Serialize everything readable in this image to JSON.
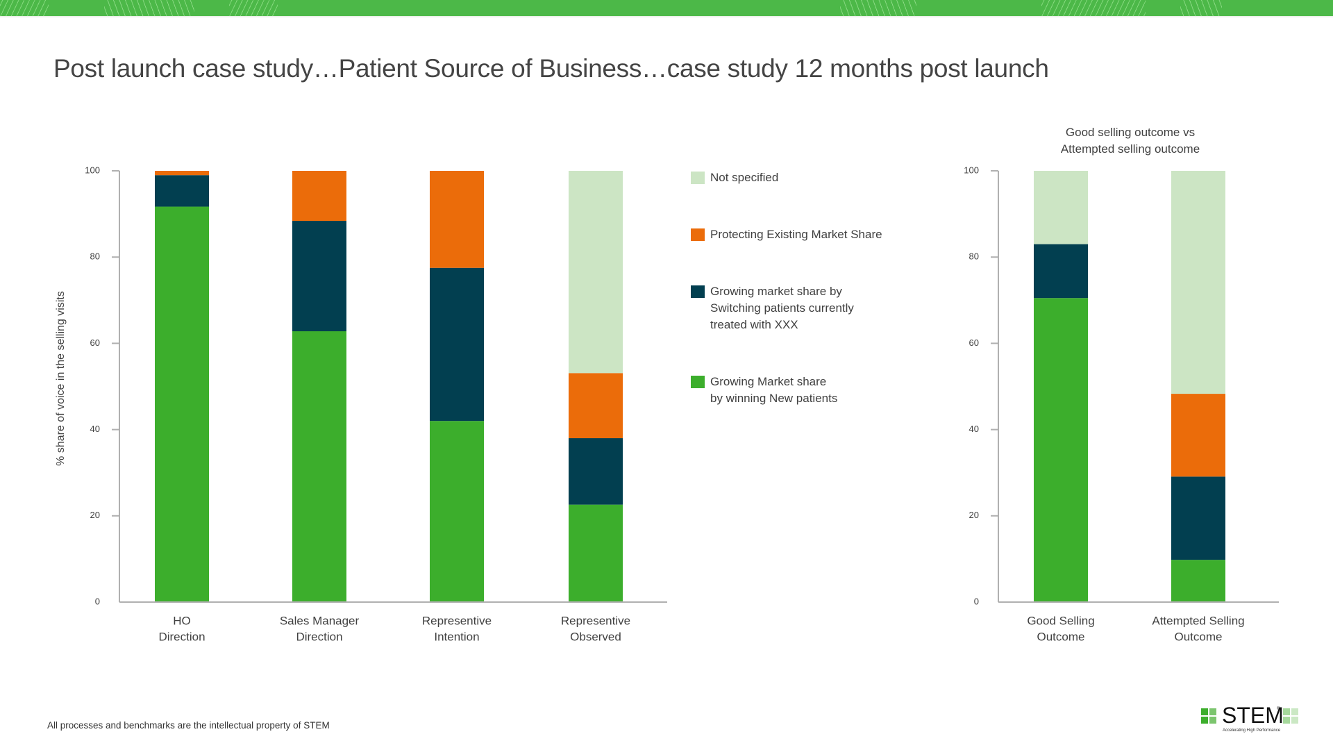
{
  "page": {
    "title": "Post launch case study…Patient Source of Business…case study 12 months post launch",
    "footer_note": "All processes and benchmarks are the intellectual property of STEM",
    "logo": {
      "word": "STEM",
      "tm": "®",
      "tagline": "Accelerating High Performance"
    },
    "colors": {
      "banner": "#4cb848",
      "not_specified": "#cce5c4",
      "protecting": "#eb6c0a",
      "switching": "#023f50",
      "new_patients": "#3cae2c",
      "axis": "#b0b0b0"
    }
  },
  "legend": {
    "items": [
      {
        "label": "Not specified",
        "color": "#cce5c4"
      },
      {
        "label": "Protecting Existing Market Share",
        "color": "#eb6c0a"
      },
      {
        "label": "Growing market share by\nSwitching patients currently\ntreated with XXX",
        "color": "#023f50"
      },
      {
        "label": "Growing Market share\nby winning  New patients",
        "color": "#3cae2c"
      }
    ]
  },
  "chart_data": [
    {
      "type": "bar",
      "stacked": true,
      "title": "",
      "xlabel": "",
      "ylabel": "% share of voice in the selling visits",
      "ylim": [
        0,
        100
      ],
      "yticks": [
        0,
        20,
        40,
        60,
        80,
        100
      ],
      "grid": false,
      "legend_position": "right",
      "categories": [
        [
          "HO",
          "Direction"
        ],
        [
          "Sales Manager",
          "Direction"
        ],
        [
          "Representive",
          "Intention"
        ],
        [
          "Representive",
          "Observed"
        ]
      ],
      "series": [
        {
          "name": "Growing Market share by winning New patients",
          "color": "#3cae2c",
          "values": [
            91.7,
            62.8,
            42.0,
            22.6
          ]
        },
        {
          "name": "Growing market share by Switching patients currently treated with XXX",
          "color": "#023f50",
          "values": [
            7.3,
            25.6,
            35.5,
            15.4
          ]
        },
        {
          "name": "Protecting Existing Market Share",
          "color": "#eb6c0a",
          "values": [
            1.0,
            11.6,
            22.5,
            15.1
          ]
        },
        {
          "name": "Not specified",
          "color": "#cce5c4",
          "values": [
            0,
            0,
            0,
            46.9
          ]
        }
      ]
    },
    {
      "type": "bar",
      "stacked": true,
      "title": [
        "Good selling outcome vs",
        "Attempted selling outcome"
      ],
      "xlabel": "",
      "ylabel": "",
      "ylim": [
        0,
        100
      ],
      "yticks": [
        0,
        20,
        40,
        60,
        80,
        100
      ],
      "grid": false,
      "categories": [
        [
          "Good Selling",
          "Outcome"
        ],
        [
          "Attempted Selling",
          "Outcome"
        ]
      ],
      "series": [
        {
          "name": "Growing Market share by winning New patients",
          "color": "#3cae2c",
          "values": [
            70.5,
            9.8
          ]
        },
        {
          "name": "Growing market share by Switching patients currently treated with XXX",
          "color": "#023f50",
          "values": [
            12.5,
            19.3
          ]
        },
        {
          "name": "Protecting Existing Market Share",
          "color": "#eb6c0a",
          "values": [
            0,
            19.2
          ]
        },
        {
          "name": "Not specified",
          "color": "#cce5c4",
          "values": [
            17.0,
            51.7
          ]
        }
      ]
    }
  ]
}
